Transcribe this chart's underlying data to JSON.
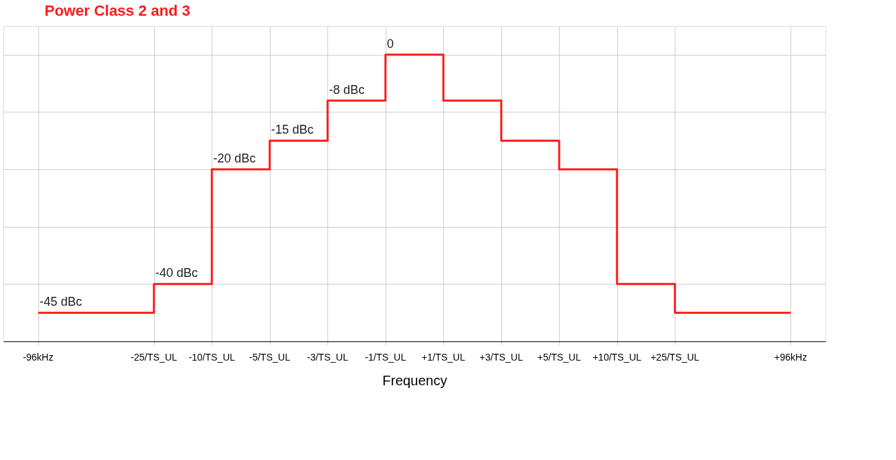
{
  "chart_data": {
    "type": "step",
    "title": "Power Class 2 and 3",
    "xlabel": "Frequency",
    "categories": [
      "-96kHz",
      null,
      "-25/TS_UL",
      "-10/TS_UL",
      "-5/TS_UL",
      "-3/TS_UL",
      "-1/TS_UL",
      "+1/TS_UL",
      "+3/TS_UL",
      "+5/TS_UL",
      "+10/TS_UL",
      "+25/TS_UL",
      null,
      "+96kHz"
    ],
    "series": [
      {
        "color": "#ff1a1a",
        "values": [
          -45,
          -45,
          -40,
          -20,
          -15,
          -8,
          0,
          -8,
          -15,
          -20,
          -40,
          -45,
          -45,
          -45
        ],
        "value_labels": [
          "-45 dBc",
          null,
          "-40 dBc",
          "-20 dBc",
          "-15 dBc",
          "-8 dBc",
          "0",
          null,
          null,
          null,
          null,
          null,
          null,
          null
        ]
      }
    ],
    "ylim": [
      -50,
      5
    ],
    "yticks": [
      {
        "value": -40,
        "label": null
      },
      {
        "value": -30,
        "label": null
      },
      {
        "value": -20,
        "label": null
      },
      {
        "value": -10,
        "label": null
      },
      {
        "value": 0,
        "label": null
      }
    ],
    "tick_labels": "x",
    "grid": true,
    "line_style": "solid",
    "marker": "none"
  }
}
